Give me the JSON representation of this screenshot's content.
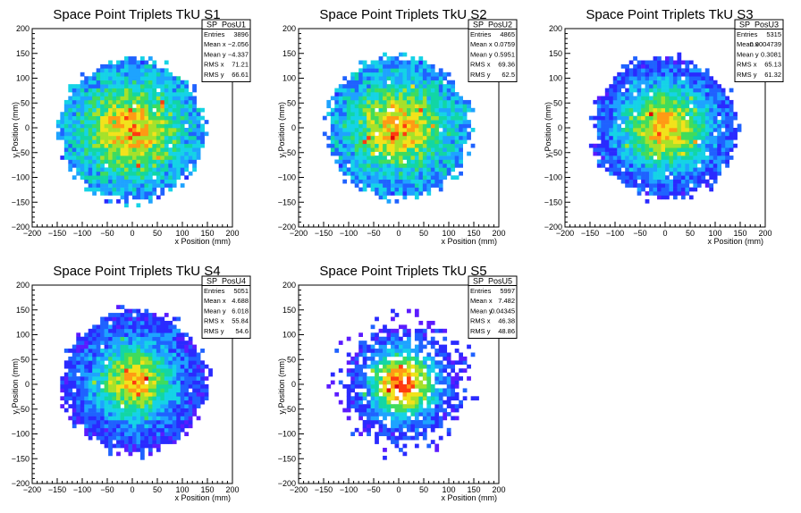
{
  "chart_data": [
    {
      "type": "heatmap",
      "title": "Space Point Triplets TkU S1",
      "xlabel": "x Position (mm)",
      "ylabel": "y Position (mm)",
      "xlim": [
        -200,
        200
      ],
      "ylim": [
        -200,
        200
      ],
      "xticks": [
        "−200",
        "−150",
        "−100",
        "−50",
        "0",
        "50",
        "100",
        "150",
        "200"
      ],
      "yticks": [
        "200",
        "150",
        "100",
        "50",
        "0",
        "−50",
        "−100",
        "−150",
        "−200"
      ],
      "distribution": {
        "mean_x": -2.056,
        "mean_y": -4.337,
        "rms_x": 71.21,
        "rms_y": 66.61,
        "radius": 150,
        "palette": "blue-green"
      },
      "stats": {
        "name": "SP_PosU1",
        "rows": [
          {
            "label": "Entries",
            "value": "3896"
          },
          {
            "label": "Mean x",
            "value": "−2.056"
          },
          {
            "label": "Mean y",
            "value": "−4.337"
          },
          {
            "label": "RMS x",
            "value": "71.21"
          },
          {
            "label": "RMS y",
            "value": "66.61"
          }
        ]
      }
    },
    {
      "type": "heatmap",
      "title": "Space Point Triplets TkU S2",
      "xlabel": "x Position (mm)",
      "ylabel": "y Position (mm)",
      "xlim": [
        -200,
        200
      ],
      "ylim": [
        -200,
        200
      ],
      "xticks": [
        "−200",
        "−150",
        "−100",
        "−50",
        "0",
        "50",
        "100",
        "150",
        "200"
      ],
      "yticks": [
        "200",
        "150",
        "100",
        "50",
        "0",
        "−50",
        "−100",
        "−150",
        "−200"
      ],
      "distribution": {
        "mean_x": 0.0759,
        "mean_y": 0.5951,
        "rms_x": 69.36,
        "rms_y": 62.5,
        "radius": 150,
        "palette": "blue-green"
      },
      "stats": {
        "name": "SP_PosU2",
        "rows": [
          {
            "label": "Entries",
            "value": "4865"
          },
          {
            "label": "Mean x",
            "value": "0.0759"
          },
          {
            "label": "Mean y",
            "value": "0.5951"
          },
          {
            "label": "RMS x",
            "value": "69.36"
          },
          {
            "label": "RMS y",
            "value": "62.5"
          }
        ]
      }
    },
    {
      "type": "heatmap",
      "title": "Space Point Triplets TkU S3",
      "xlabel": "x Position (mm)",
      "ylabel": "y Position (mm)",
      "xlim": [
        -200,
        200
      ],
      "ylim": [
        -200,
        200
      ],
      "xticks": [
        "−200",
        "−150",
        "−100",
        "−50",
        "0",
        "50",
        "100",
        "150",
        "200"
      ],
      "yticks": [
        "200",
        "150",
        "100",
        "50",
        "0",
        "−50",
        "−100",
        "−150",
        "−200"
      ],
      "distribution": {
        "mean_x": 0.0004739,
        "mean_y": 0.3081,
        "rms_x": 65.13,
        "rms_y": 61.32,
        "radius": 150,
        "palette": "violet-blue"
      },
      "stats": {
        "name": "SP_PosU3",
        "rows": [
          {
            "label": "Entries",
            "value": "5315"
          },
          {
            "label": "Mean x",
            "value": "0.0004739"
          },
          {
            "label": "Mean y",
            "value": "0.3081"
          },
          {
            "label": "RMS x",
            "value": "65.13"
          },
          {
            "label": "RMS y",
            "value": "61.32"
          }
        ]
      }
    },
    {
      "type": "heatmap",
      "title": "Space Point Triplets TkU S4",
      "xlabel": "x Position (mm)",
      "ylabel": "y Position (mm)",
      "xlim": [
        -200,
        200
      ],
      "ylim": [
        -200,
        200
      ],
      "xticks": [
        "−200",
        "−150",
        "−100",
        "−50",
        "0",
        "50",
        "100",
        "150",
        "200"
      ],
      "yticks": [
        "200",
        "150",
        "100",
        "50",
        "0",
        "−50",
        "−100",
        "−150",
        "−200"
      ],
      "distribution": {
        "mean_x": 4.688,
        "mean_y": 6.018,
        "rms_x": 55.84,
        "rms_y": 54.6,
        "radius": 150,
        "palette": "violet-blue"
      },
      "stats": {
        "name": "SP_PosU4",
        "rows": [
          {
            "label": "Entries",
            "value": "5051"
          },
          {
            "label": "Mean x",
            "value": "4.688"
          },
          {
            "label": "Mean y",
            "value": "6.018"
          },
          {
            "label": "RMS x",
            "value": "55.84"
          },
          {
            "label": "RMS y",
            "value": "54.6"
          }
        ]
      }
    },
    {
      "type": "heatmap",
      "title": "Space Point Triplets TkU S5",
      "xlabel": "x Position (mm)",
      "ylabel": "y Position (mm)",
      "xlim": [
        -200,
        200
      ],
      "ylim": [
        -200,
        200
      ],
      "xticks": [
        "−200",
        "−150",
        "−100",
        "−50",
        "0",
        "50",
        "100",
        "150",
        "200"
      ],
      "yticks": [
        "200",
        "150",
        "100",
        "50",
        "0",
        "−50",
        "−100",
        "−150",
        "−200"
      ],
      "distribution": {
        "mean_x": 7.482,
        "mean_y": 0.04345,
        "rms_x": 46.38,
        "rms_y": 48.86,
        "radius": 150,
        "palette": "violet-sparse"
      },
      "stats": {
        "name": "SP_PosU5",
        "rows": [
          {
            "label": "Entries",
            "value": "5997"
          },
          {
            "label": "Mean x",
            "value": "7.482"
          },
          {
            "label": "Mean y",
            "value": "0.04345"
          },
          {
            "label": "RMS x",
            "value": "46.38"
          },
          {
            "label": "RMS y",
            "value": "48.86"
          }
        ]
      }
    }
  ],
  "colors": {
    "palette": [
      "#5b1bff",
      "#2a2aff",
      "#1f62ff",
      "#1ea3ff",
      "#15d3e6",
      "#12d6a4",
      "#3fdc5c",
      "#a6e12a",
      "#f2e21b",
      "#ff9a14",
      "#ff3b10",
      "#e0000a"
    ]
  }
}
